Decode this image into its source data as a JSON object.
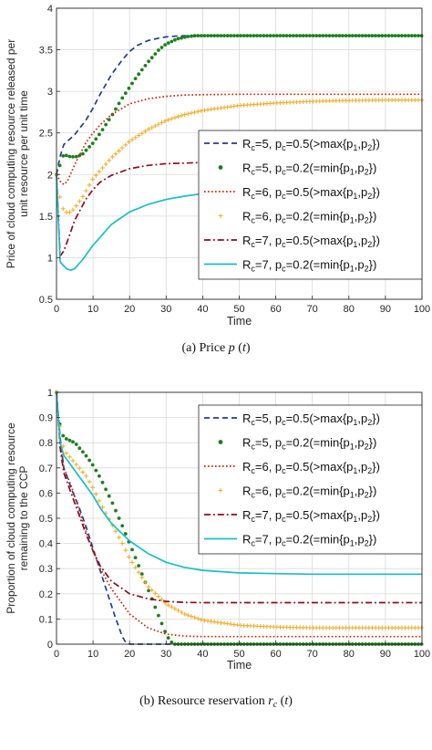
{
  "chart_data": [
    {
      "type": "line",
      "caption": "(a) Price p (t)",
      "xlabel": "Time",
      "ylabel": "Price of cloud computing resource released per unit resource per unit time",
      "xlim": [
        0,
        100
      ],
      "ylim": [
        0.5,
        4
      ],
      "xticks": [
        0,
        10,
        20,
        30,
        40,
        50,
        60,
        70,
        80,
        90,
        100
      ],
      "yticks": [
        0.5,
        1,
        1.5,
        2,
        2.5,
        3,
        3.5,
        4
      ],
      "grid": true,
      "legend_position": "right",
      "series": [
        {
          "name": "Rc=5, pc=0.5(>max{p1,p2})",
          "color": "#1f3f8f",
          "style": "dashed",
          "x": [
            0,
            1,
            2,
            3,
            5,
            8,
            10,
            12,
            15,
            18,
            20,
            22,
            25,
            28,
            30,
            33,
            36,
            40,
            45,
            50,
            100
          ],
          "y": [
            2.0,
            2.22,
            2.36,
            2.4,
            2.48,
            2.65,
            2.8,
            2.97,
            3.2,
            3.38,
            3.48,
            3.55,
            3.61,
            3.64,
            3.655,
            3.665,
            3.67,
            3.67,
            3.67,
            3.67,
            3.67
          ]
        },
        {
          "name": "Rc=5, pc=0.2(=min{p1,p2})",
          "color": "#1e7e1e",
          "style": "dots",
          "x": [
            0,
            1,
            2,
            3,
            5,
            7,
            10,
            12,
            15,
            18,
            20,
            22,
            25,
            28,
            30,
            33,
            36,
            38,
            40,
            45,
            100
          ],
          "y": [
            2.0,
            2.12,
            2.25,
            2.22,
            2.21,
            2.24,
            2.38,
            2.5,
            2.7,
            2.92,
            3.05,
            3.18,
            3.35,
            3.5,
            3.57,
            3.63,
            3.66,
            3.67,
            3.67,
            3.67,
            3.67
          ]
        },
        {
          "name": "Rc=6, pc=0.5(>max{p1,p2})",
          "color": "#cc2200",
          "style": "dotted",
          "x": [
            0,
            1,
            2,
            3,
            5,
            8,
            10,
            12,
            15,
            20,
            25,
            30,
            35,
            40,
            50,
            60,
            100
          ],
          "y": [
            2.0,
            1.92,
            1.88,
            1.92,
            2.12,
            2.38,
            2.5,
            2.6,
            2.72,
            2.85,
            2.91,
            2.94,
            2.955,
            2.96,
            2.965,
            2.965,
            2.965
          ]
        },
        {
          "name": "Rc=6, pc=0.2(=min{p1,p2})",
          "color": "#f0b030",
          "style": "plus",
          "x": [
            0,
            1,
            2,
            3,
            4,
            5,
            7,
            10,
            15,
            20,
            25,
            30,
            35,
            40,
            50,
            60,
            70,
            80,
            90,
            100
          ],
          "y": [
            2.0,
            1.7,
            1.56,
            1.54,
            1.55,
            1.6,
            1.72,
            1.95,
            2.2,
            2.4,
            2.54,
            2.65,
            2.72,
            2.77,
            2.83,
            2.86,
            2.88,
            2.89,
            2.895,
            2.895
          ]
        },
        {
          "name": "Rc=7, pc=0.5(>max{p1,p2})",
          "color": "#8b0d20",
          "style": "dashdot",
          "x": [
            0,
            1,
            2,
            3,
            5,
            8,
            10,
            12,
            15,
            20,
            25,
            30,
            40,
            50,
            60,
            100
          ],
          "y": [
            2.0,
            1.02,
            1.08,
            1.2,
            1.45,
            1.7,
            1.82,
            1.91,
            1.99,
            2.07,
            2.11,
            2.13,
            2.145,
            2.15,
            2.155,
            2.155
          ]
        },
        {
          "name": "Rc=7, pc=0.2(=min{p1,p2})",
          "color": "#17bfc6",
          "style": "solid",
          "x": [
            0,
            1,
            2,
            3,
            4,
            5,
            7,
            10,
            15,
            20,
            25,
            30,
            35,
            40,
            50,
            60,
            70,
            100
          ],
          "y": [
            2.0,
            0.95,
            0.9,
            0.86,
            0.85,
            0.87,
            0.97,
            1.15,
            1.4,
            1.55,
            1.64,
            1.7,
            1.74,
            1.77,
            1.8,
            1.82,
            1.83,
            1.84
          ]
        }
      ]
    },
    {
      "type": "line",
      "caption": "(b) Resource reservation rc (t)",
      "xlabel": "Time",
      "ylabel": "Proportion of cloud computing resource remaining to the CCP",
      "xlim": [
        0,
        100
      ],
      "ylim": [
        0,
        1
      ],
      "xticks": [
        0,
        10,
        20,
        30,
        40,
        50,
        60,
        70,
        80,
        90,
        100
      ],
      "yticks": [
        0,
        0.1,
        0.2,
        0.3,
        0.4,
        0.5,
        0.6,
        0.7,
        0.8,
        0.9,
        1
      ],
      "grid": true,
      "legend_position": "top-right",
      "series": [
        {
          "name": "Rc=5, pc=0.5(>max{p1,p2})",
          "color": "#1f3f8f",
          "style": "dashed",
          "x": [
            0,
            1,
            2,
            4,
            6,
            8,
            10,
            12,
            14,
            16,
            18,
            19,
            20,
            30,
            100
          ],
          "y": [
            1.0,
            0.82,
            0.7,
            0.62,
            0.55,
            0.47,
            0.38,
            0.29,
            0.2,
            0.11,
            0.03,
            0.005,
            0.0,
            0.0,
            0.0
          ]
        },
        {
          "name": "Rc=5, pc=0.2(=min{p1,p2})",
          "color": "#1e7e1e",
          "style": "dots",
          "x": [
            0,
            1,
            2,
            5,
            8,
            10,
            12,
            15,
            18,
            20,
            22,
            25,
            28,
            30,
            31,
            32,
            33,
            100
          ],
          "y": [
            1.0,
            0.86,
            0.82,
            0.8,
            0.75,
            0.71,
            0.66,
            0.57,
            0.47,
            0.4,
            0.33,
            0.22,
            0.11,
            0.04,
            0.015,
            0.0,
            0.0,
            0.0
          ]
        },
        {
          "name": "Rc=6, pc=0.5(>max{p1,p2})",
          "color": "#cc2200",
          "style": "dotted",
          "x": [
            0,
            1,
            2,
            4,
            6,
            8,
            10,
            12,
            15,
            20,
            25,
            30,
            35,
            40,
            50,
            60,
            100
          ],
          "y": [
            1.0,
            0.8,
            0.7,
            0.63,
            0.54,
            0.45,
            0.37,
            0.3,
            0.22,
            0.12,
            0.065,
            0.04,
            0.032,
            0.03,
            0.03,
            0.03,
            0.03
          ]
        },
        {
          "name": "Rc=6, pc=0.2(=min{p1,p2})",
          "color": "#f0b030",
          "style": "plus",
          "x": [
            0,
            1,
            2,
            5,
            8,
            10,
            12,
            15,
            18,
            20,
            25,
            30,
            35,
            40,
            50,
            60,
            70,
            100
          ],
          "y": [
            1.0,
            0.85,
            0.77,
            0.72,
            0.67,
            0.62,
            0.56,
            0.48,
            0.4,
            0.34,
            0.23,
            0.16,
            0.12,
            0.095,
            0.075,
            0.068,
            0.065,
            0.065
          ]
        },
        {
          "name": "Rc=7, pc=0.5(>max{p1,p2})",
          "color": "#8b0d20",
          "style": "dashdot",
          "x": [
            0,
            1,
            2,
            4,
            6,
            8,
            10,
            12,
            15,
            20,
            25,
            30,
            35,
            40,
            50,
            100
          ],
          "y": [
            1.0,
            0.78,
            0.68,
            0.6,
            0.52,
            0.44,
            0.37,
            0.31,
            0.25,
            0.2,
            0.18,
            0.17,
            0.166,
            0.165,
            0.165,
            0.165
          ]
        },
        {
          "name": "Rc=7, pc=0.2(=min{p1,p2})",
          "color": "#17bfc6",
          "style": "solid",
          "x": [
            0,
            1,
            2,
            5,
            8,
            10,
            12,
            15,
            20,
            25,
            30,
            35,
            40,
            50,
            60,
            70,
            100
          ],
          "y": [
            1.0,
            0.8,
            0.75,
            0.69,
            0.63,
            0.59,
            0.54,
            0.48,
            0.41,
            0.36,
            0.325,
            0.305,
            0.293,
            0.283,
            0.28,
            0.278,
            0.278
          ]
        }
      ]
    }
  ]
}
